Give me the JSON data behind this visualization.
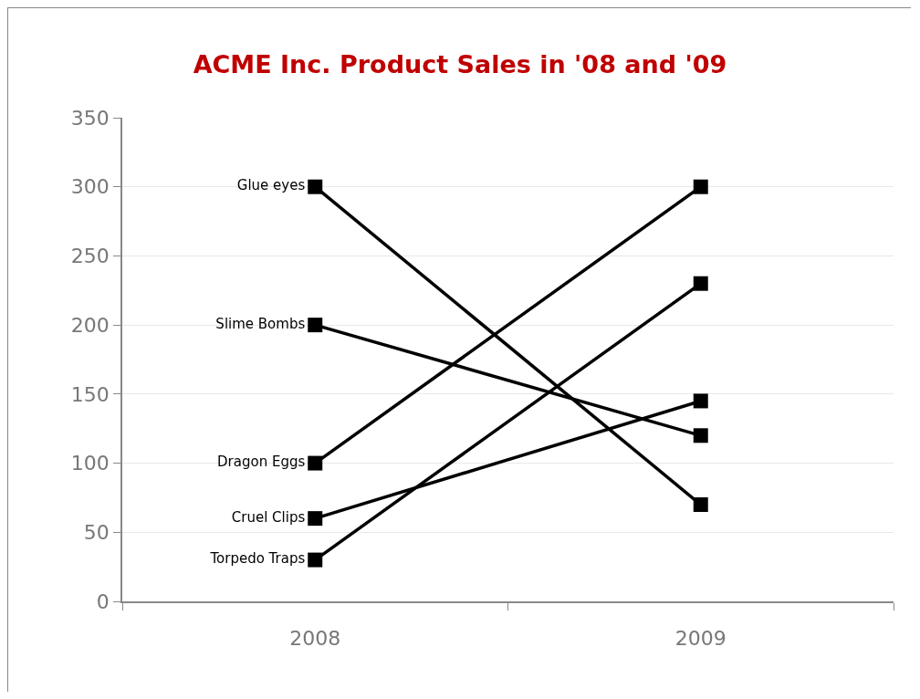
{
  "chart_data": {
    "type": "line",
    "title": "ACME Inc. Product Sales in '08 and '09",
    "categories": [
      "2008",
      "2009"
    ],
    "series": [
      {
        "name": "Glue eyes",
        "color": "#000000",
        "values": [
          300,
          70
        ]
      },
      {
        "name": "Slime Bombs",
        "color": "#000000",
        "values": [
          200,
          120
        ]
      },
      {
        "name": "Dragon Eggs",
        "color": "#000000",
        "values": [
          100,
          300
        ]
      },
      {
        "name": "Cruel Clips",
        "color": "#000000",
        "values": [
          60,
          145
        ]
      },
      {
        "name": "Torpedo Traps",
        "color": "#000000",
        "values": [
          30,
          230
        ]
      }
    ],
    "ylim": [
      0,
      350
    ],
    "yticks": [
      0,
      50,
      100,
      150,
      200,
      250,
      300,
      350
    ],
    "grid": "y",
    "legend": false,
    "marker": "square",
    "line_style": "solid"
  }
}
